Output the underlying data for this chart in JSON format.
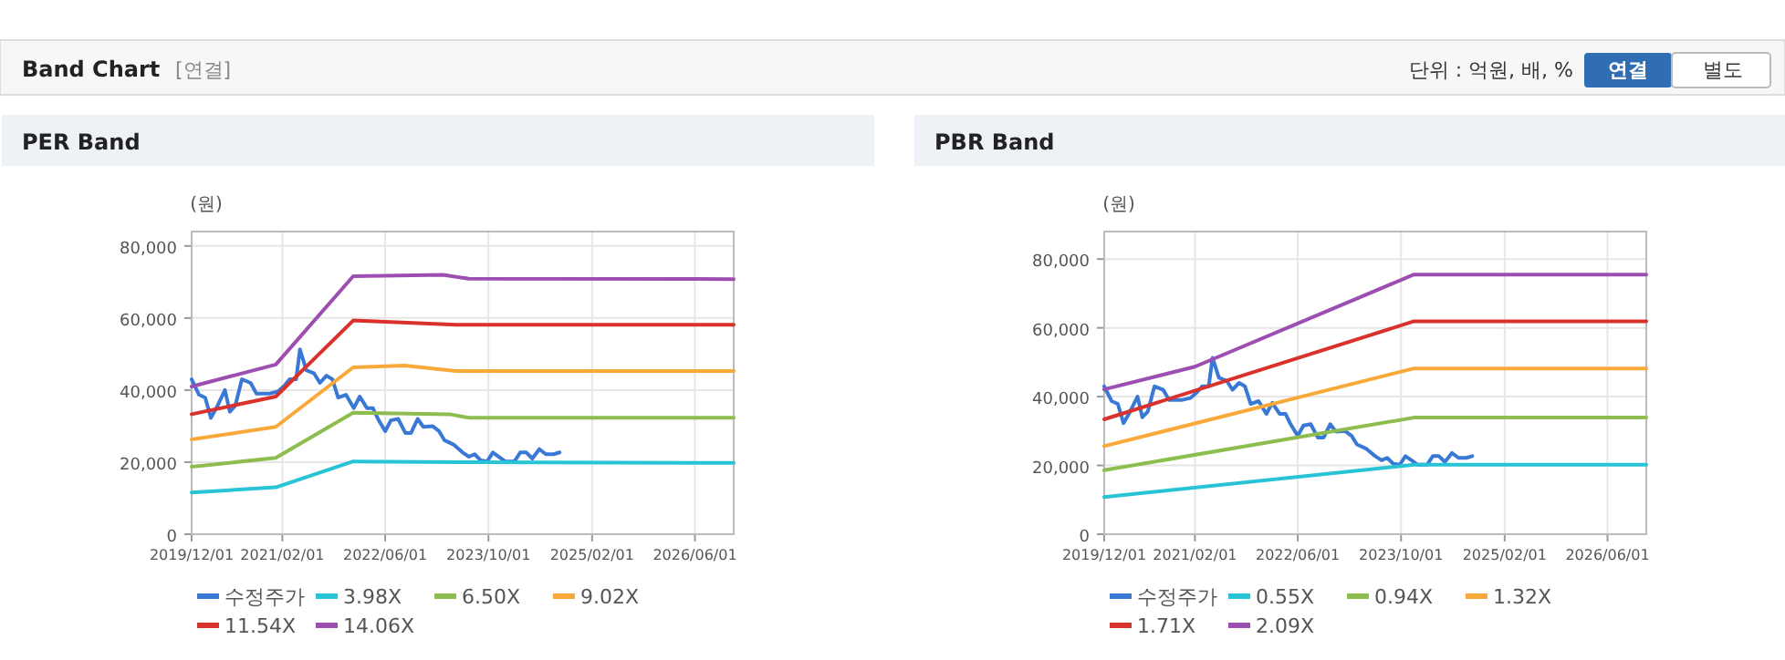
{
  "chart_data": [
    {
      "type": "line",
      "title": "PER Band",
      "ylabel": "(원)",
      "annotations": [
        "Band Chart",
        "[연결]",
        "단위 : 억원, 배, %",
        "연결",
        "별도"
      ],
      "xlim": [
        "2019-12-01",
        "2026-12-01"
      ],
      "xticks": [
        {
          "value": "2019-12-01",
          "label": "2019/12/01"
        },
        {
          "value": "2021-02-01",
          "label": "2021/02/01"
        },
        {
          "value": "2022-06-01",
          "label": "2022/06/01"
        },
        {
          "value": "2023-10-01",
          "label": "2023/10/01"
        },
        {
          "value": "2025-02-01",
          "label": "2025/02/01"
        },
        {
          "value": "2026-06-01",
          "label": "2026/06/01"
        }
      ],
      "ylim": [
        0,
        84000
      ],
      "yticks": [
        0,
        {
          "value": 20000,
          "label": "20,000"
        },
        {
          "value": 40000,
          "label": "40,000"
        },
        {
          "value": 60000,
          "label": "60,000"
        },
        {
          "value": 80000,
          "label": "80,000"
        }
      ],
      "grid": true,
      "legend": "bottom",
      "marker": "none",
      "line_style": "solid",
      "series": [
        {
          "name": "수정주가",
          "color": "#3a78d6",
          "x": [
            "2019-12-01",
            "2020-01-05",
            "2020-02-03",
            "2020-03-01",
            "2020-03-30",
            "2020-05-06",
            "2020-05-29",
            "2020-06-24",
            "2020-07-25",
            "2020-09-04",
            "2020-10-02",
            "2020-11-29",
            "2021-01-11",
            "2021-02-10",
            "2021-03-07",
            "2021-04-07",
            "2021-04-25",
            "2021-05-25",
            "2021-07-01",
            "2021-07-28",
            "2021-08-28",
            "2021-09-25",
            "2021-10-22",
            "2021-11-28",
            "2022-01-04",
            "2022-02-01",
            "2022-03-07",
            "2022-04-04",
            "2022-04-28",
            "2022-06-01",
            "2022-06-28",
            "2022-08-01",
            "2022-09-04",
            "2022-10-01",
            "2022-11-01",
            "2022-11-28",
            "2023-01-10",
            "2023-02-10",
            "2023-03-07",
            "2023-04-19",
            "2023-06-01",
            "2023-07-01",
            "2023-07-28",
            "2023-08-25",
            "2023-09-25",
            "2023-10-22",
            "2023-11-19",
            "2023-12-19",
            "2024-02-01",
            "2024-02-28",
            "2024-03-28",
            "2024-04-25",
            "2024-05-28",
            "2024-06-28",
            "2024-08-04",
            "2024-09-01"
          ],
          "values": [
            43000,
            38700,
            37900,
            32300,
            35400,
            40000,
            34000,
            35700,
            43000,
            42000,
            39000,
            39000,
            39600,
            41200,
            43000,
            43000,
            51300,
            45500,
            44600,
            42000,
            44000,
            43000,
            37900,
            38700,
            35000,
            38200,
            35000,
            35000,
            32000,
            28600,
            31600,
            32000,
            28100,
            28100,
            32000,
            29800,
            30000,
            28600,
            26100,
            24900,
            22700,
            21500,
            22200,
            20500,
            20200,
            22700,
            21500,
            20200,
            20200,
            22700,
            22700,
            21000,
            23600,
            22200,
            22200,
            22700
          ]
        },
        {
          "name": "3.98X",
          "color": "#29c3d6",
          "x": [
            "2019-12-01",
            "2021-01-01",
            "2022-01-01",
            "2023-05-01",
            "2026-12-01"
          ],
          "values": [
            11600,
            13000,
            20200,
            20000,
            19800
          ]
        },
        {
          "name": "6.50X",
          "color": "#8dbd4f",
          "x": [
            "2019-12-01",
            "2021-01-01",
            "2022-01-01",
            "2023-04-01",
            "2023-07-01",
            "2026-12-01"
          ],
          "values": [
            18700,
            21200,
            33700,
            33300,
            32300,
            32300
          ]
        },
        {
          "name": "9.02X",
          "color": "#f9a93a",
          "x": [
            "2019-12-01",
            "2021-01-01",
            "2022-01-01",
            "2022-09-01",
            "2023-05-01",
            "2026-12-01"
          ],
          "values": [
            26300,
            29800,
            46300,
            46800,
            45300,
            45300
          ]
        },
        {
          "name": "11.54X",
          "color": "#d9312b",
          "x": [
            "2019-12-01",
            "2021-01-01",
            "2022-01-01",
            "2023-05-01",
            "2026-12-01"
          ],
          "values": [
            33300,
            38200,
            59300,
            58100,
            58100
          ]
        },
        {
          "name": "14.06X",
          "color": "#9c4fb0",
          "x": [
            "2019-12-01",
            "2021-01-01",
            "2022-01-01",
            "2023-03-01",
            "2023-07-01",
            "2026-12-01"
          ],
          "values": [
            41000,
            47100,
            71600,
            72000,
            70900,
            70800
          ]
        }
      ]
    },
    {
      "type": "line",
      "title": "PBR Band",
      "ylabel": "(원)",
      "xlim": [
        "2019-12-01",
        "2026-12-01"
      ],
      "xticks": [
        {
          "value": "2019-12-01",
          "label": "2019/12/01"
        },
        {
          "value": "2021-02-01",
          "label": "2021/02/01"
        },
        {
          "value": "2022-06-01",
          "label": "2022/06/01"
        },
        {
          "value": "2023-10-01",
          "label": "2023/10/01"
        },
        {
          "value": "2025-02-01",
          "label": "2025/02/01"
        },
        {
          "value": "2026-06-01",
          "label": "2026/06/01"
        }
      ],
      "ylim": [
        0,
        88000
      ],
      "yticks": [
        0,
        {
          "value": 20000,
          "label": "20,000"
        },
        {
          "value": 40000,
          "label": "40,000"
        },
        {
          "value": 60000,
          "label": "60,000"
        },
        {
          "value": 80000,
          "label": "80,000"
        }
      ],
      "grid": true,
      "legend": "bottom",
      "marker": "none",
      "line_style": "solid",
      "series": [
        {
          "name": "수정주가",
          "color": "#3a78d6",
          "x": [
            "2019-12-01",
            "2020-01-05",
            "2020-02-03",
            "2020-03-01",
            "2020-03-30",
            "2020-05-06",
            "2020-05-29",
            "2020-06-24",
            "2020-07-25",
            "2020-09-04",
            "2020-10-02",
            "2020-11-29",
            "2021-01-11",
            "2021-02-10",
            "2021-03-07",
            "2021-04-07",
            "2021-04-25",
            "2021-05-25",
            "2021-07-01",
            "2021-07-28",
            "2021-08-28",
            "2021-09-25",
            "2021-10-22",
            "2021-11-28",
            "2022-01-04",
            "2022-02-01",
            "2022-03-07",
            "2022-04-04",
            "2022-04-28",
            "2022-06-01",
            "2022-06-28",
            "2022-08-01",
            "2022-09-04",
            "2022-10-01",
            "2022-11-01",
            "2022-11-28",
            "2023-01-10",
            "2023-02-10",
            "2023-03-07",
            "2023-04-19",
            "2023-06-01",
            "2023-07-01",
            "2023-07-28",
            "2023-08-25",
            "2023-09-25",
            "2023-10-22",
            "2023-11-19",
            "2023-12-19",
            "2024-02-01",
            "2024-02-28",
            "2024-03-28",
            "2024-04-25",
            "2024-05-28",
            "2024-06-28",
            "2024-08-04",
            "2024-09-01"
          ],
          "values": [
            43000,
            38700,
            37900,
            32300,
            35400,
            40000,
            34000,
            35700,
            43000,
            42000,
            39000,
            39000,
            39600,
            41200,
            43000,
            43000,
            51300,
            45500,
            44600,
            42000,
            44000,
            43000,
            37900,
            38700,
            35000,
            38200,
            35000,
            35000,
            32000,
            28600,
            31600,
            32000,
            28100,
            28100,
            32000,
            29800,
            30000,
            28600,
            26100,
            24900,
            22700,
            21500,
            22200,
            20500,
            20200,
            22700,
            21500,
            20200,
            20200,
            22700,
            22700,
            21000,
            23600,
            22200,
            22200,
            22700
          ]
        },
        {
          "name": "0.55X",
          "color": "#29c3d6",
          "x": [
            "2019-12-01",
            "2023-12-01",
            "2026-12-01"
          ],
          "values": [
            10800,
            20200,
            20200
          ]
        },
        {
          "name": "0.94X",
          "color": "#8dbd4f",
          "x": [
            "2019-12-01",
            "2023-12-01",
            "2026-12-01"
          ],
          "values": [
            18600,
            33900,
            33900
          ]
        },
        {
          "name": "1.32X",
          "color": "#f9a93a",
          "x": [
            "2019-12-01",
            "2023-12-01",
            "2026-12-01"
          ],
          "values": [
            25600,
            48200,
            48200
          ]
        },
        {
          "name": "1.71X",
          "color": "#d9312b",
          "x": [
            "2019-12-01",
            "2023-12-01",
            "2026-12-01"
          ],
          "values": [
            33400,
            61900,
            61900
          ]
        },
        {
          "name": "2.09X",
          "color": "#9c4fb0",
          "x": [
            "2019-12-01",
            "2021-02-01",
            "2023-12-01",
            "2026-12-01"
          ],
          "values": [
            42100,
            48700,
            75500,
            75500
          ]
        }
      ]
    }
  ]
}
